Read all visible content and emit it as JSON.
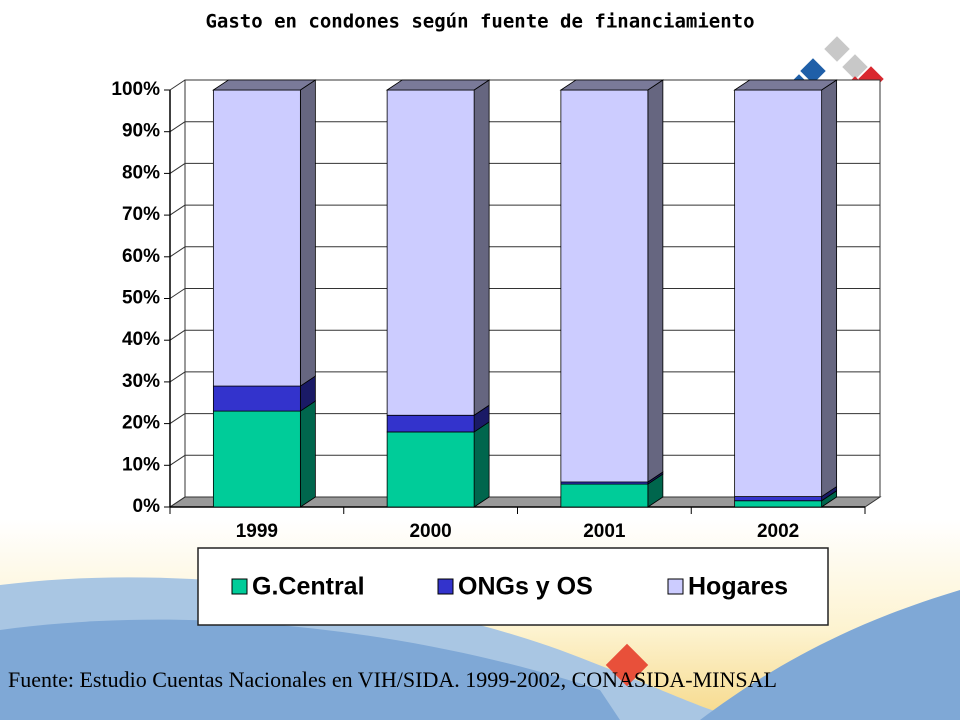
{
  "chart_data": {
    "type": "stacked-bar-3d",
    "title": "Gasto en condones según fuente de financiamiento",
    "categories": [
      "1999",
      "2000",
      "2001",
      "2002"
    ],
    "series": [
      {
        "name": "G.Central",
        "color": "#00cc99",
        "values": [
          23,
          18,
          5.5,
          1.5
        ]
      },
      {
        "name": "ONGs y OS",
        "color": "#3333cc",
        "values": [
          6,
          4,
          0.5,
          1
        ]
      },
      {
        "name": "Hogares",
        "color": "#ccccff",
        "values": [
          71,
          78,
          94,
          97.5
        ]
      }
    ],
    "ylim": [
      0,
      100
    ],
    "yticks": [
      {
        "value": 0,
        "label": "0%"
      },
      {
        "value": 10,
        "label": "10%"
      },
      {
        "value": 20,
        "label": "20%"
      },
      {
        "value": 30,
        "label": "30%"
      },
      {
        "value": 40,
        "label": "40%"
      },
      {
        "value": 50,
        "label": "50%"
      },
      {
        "value": 60,
        "label": "60%"
      },
      {
        "value": 70,
        "label": "70%"
      },
      {
        "value": 80,
        "label": "80%"
      },
      {
        "value": 90,
        "label": "90%"
      },
      {
        "value": 100,
        "label": "100%"
      }
    ],
    "grid": true,
    "source": "Fuente: Estudio Cuentas Nacionales en VIH/SIDA. 1999-2002, CONASIDA-MINSAL"
  }
}
